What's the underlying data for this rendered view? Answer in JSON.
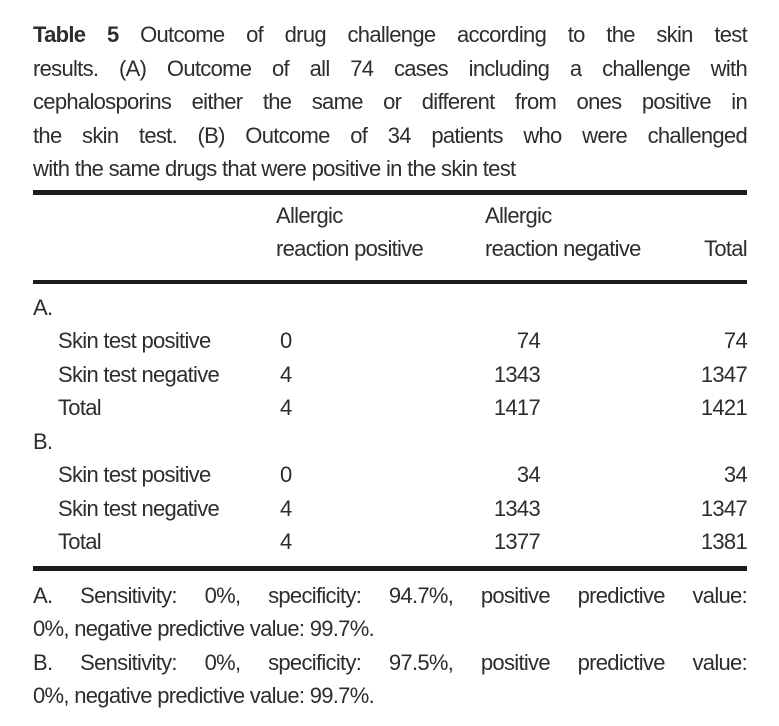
{
  "colors": {
    "text": "#2d2d2d",
    "rule": "#1c1c1c",
    "background": "#ffffff"
  },
  "caption": {
    "bold_label": "Table 5",
    "lines": [
      "Outcome of drug challenge according to the skin test",
      "results. (A) Outcome of all 74 cases including a challenge with",
      "cephalosporins either the same or different from ones positive in",
      "the skin test. (B) Outcome of 34 patients who were challenged",
      "with the same drugs that were positive in the skin test"
    ]
  },
  "table": {
    "header": {
      "col2": [
        "Allergic",
        "reaction positive"
      ],
      "col3": [
        "Allergic",
        "reaction negative"
      ],
      "col4": "Total"
    },
    "sections": [
      {
        "label": "A.",
        "rows": [
          {
            "label": "Skin test positive",
            "pos": "0",
            "neg": "74",
            "total": "74"
          },
          {
            "label": "Skin test negative",
            "pos": "4",
            "neg": "1343",
            "total": "1347"
          },
          {
            "label": "Total",
            "pos": "4",
            "neg": "1417",
            "total": "1421"
          }
        ]
      },
      {
        "label": "B.",
        "rows": [
          {
            "label": "Skin test positive",
            "pos": "0",
            "neg": "34",
            "total": "34"
          },
          {
            "label": "Skin test negative",
            "pos": "4",
            "neg": "1343",
            "total": "1347"
          },
          {
            "label": "Total",
            "pos": "4",
            "neg": "1377",
            "total": "1381"
          }
        ]
      }
    ]
  },
  "footnotes": [
    {
      "lines": [
        "A. Sensitivity: 0%, specificity: 94.7%, positive predictive value:",
        "0%, negative predictive value: 99.7%."
      ]
    },
    {
      "lines": [
        "B. Sensitivity: 0%, specificity: 97.5%, positive predictive value:",
        "0%, negative predictive value: 99.7%."
      ]
    }
  ]
}
